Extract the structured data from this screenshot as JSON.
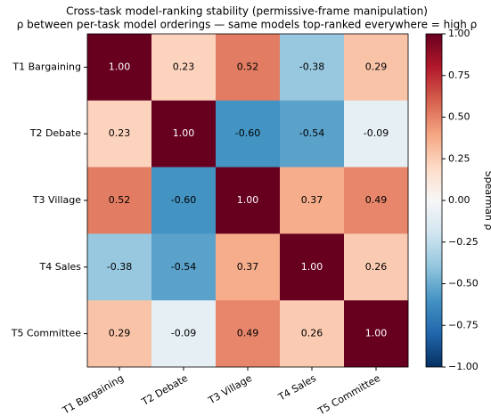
{
  "chart_data": {
    "type": "heatmap",
    "title": "Cross-task model-ranking stability (permissive-frame manipulation)",
    "subtitle": "ρ between per-task model orderings — same models top-ranked everywhere = high ρ",
    "x_categories": [
      "T1 Bargaining",
      "T2 Debate",
      "T3 Village",
      "T4 Sales",
      "T5 Committee"
    ],
    "y_categories": [
      "T1 Bargaining",
      "T2 Debate",
      "T3 Village",
      "T4 Sales",
      "T5 Committee"
    ],
    "values": [
      [
        1,
        0.23,
        0.52,
        -0.38,
        0.29
      ],
      [
        0.23,
        1,
        -0.6,
        -0.54,
        -0.09
      ],
      [
        0.52,
        -0.6,
        1,
        0.37,
        0.49
      ],
      [
        -0.38,
        -0.54,
        0.37,
        1,
        0.26
      ],
      [
        0.29,
        -0.09,
        0.49,
        0.26,
        1
      ]
    ],
    "value_labels": [
      [
        "1.00",
        "0.23",
        "0.52",
        "-0.38",
        "0.29"
      ],
      [
        "0.23",
        "1.00",
        "-0.60",
        "-0.54",
        "-0.09"
      ],
      [
        "0.52",
        "-0.60",
        "1.00",
        "0.37",
        "0.49"
      ],
      [
        "-0.38",
        "-0.54",
        "0.37",
        "1.00",
        "0.26"
      ],
      [
        "0.29",
        "-0.09",
        "0.49",
        "0.26",
        "1.00"
      ]
    ],
    "colormap": "RdBu_r",
    "vlim": [
      -1,
      1
    ],
    "colorbar_label": "Spearman ρ",
    "colorbar_ticks": [
      {
        "value": 1,
        "label": "1.00"
      },
      {
        "value": 0.75,
        "label": "0.75"
      },
      {
        "value": 0.5,
        "label": "0.50"
      },
      {
        "value": 0.25,
        "label": "0.25"
      },
      {
        "value": 0,
        "label": "0.00"
      },
      {
        "value": -0.25,
        "label": "−0.25"
      },
      {
        "value": -0.5,
        "label": "−0.50"
      },
      {
        "value": -0.75,
        "label": "−0.75"
      },
      {
        "value": -1,
        "label": "−1.00"
      }
    ]
  }
}
